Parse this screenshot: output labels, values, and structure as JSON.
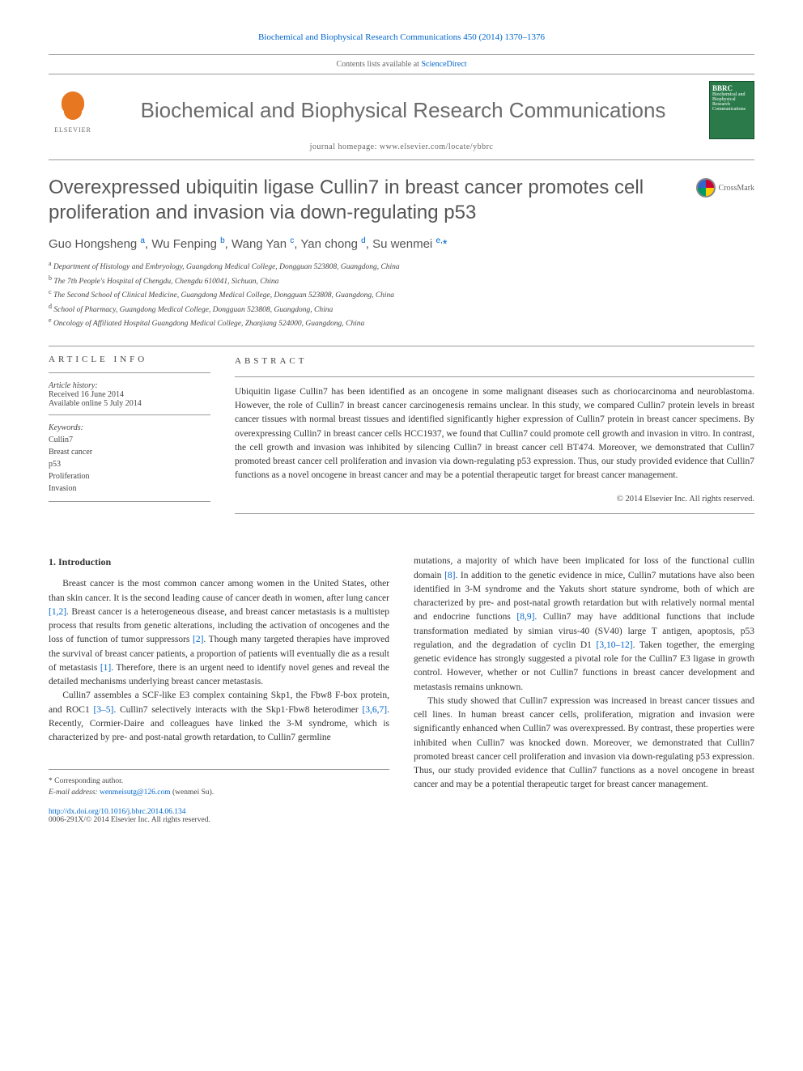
{
  "header": {
    "citation": "Biochemical and Biophysical Research Communications 450 (2014) 1370–1376",
    "contents_line_prefix": "Contents lists available at ",
    "contents_link": "ScienceDirect",
    "journal_title": "Biochemical and Biophysical Research Communications",
    "homepage_prefix": "journal homepage: ",
    "homepage_url": "www.elsevier.com/locate/ybbrc",
    "elsevier_label": "ELSEVIER",
    "cover_bbrc": "BBRC",
    "cover_sub": "Biochemical and Biophysical Research Communications"
  },
  "crossmark": "CrossMark",
  "title": "Overexpressed ubiquitin ligase Cullin7 in breast cancer promotes cell proliferation and invasion via down-regulating p53",
  "authors": [
    {
      "name": "Guo Hongsheng",
      "aff": "a"
    },
    {
      "name": "Wu Fenping",
      "aff": "b"
    },
    {
      "name": "Wang Yan",
      "aff": "c"
    },
    {
      "name": "Yan chong",
      "aff": "d"
    },
    {
      "name": "Su wenmei",
      "aff": "e,",
      "corr": true
    }
  ],
  "affiliations": [
    {
      "sup": "a",
      "text": "Department of Histology and Embryology, Guangdong Medical College, Dongguan 523808, Guangdong, China"
    },
    {
      "sup": "b",
      "text": "The 7th People's Hospital of Chengdu, Chengdu 610041, Sichuan, China"
    },
    {
      "sup": "c",
      "text": "The Second School of Clinical Medicine, Guangdong Medical College, Dongguan 523808, Guangdong, China"
    },
    {
      "sup": "d",
      "text": "School of Pharmacy, Guangdong Medical College, Dongguan 523808, Guangdong, China"
    },
    {
      "sup": "e",
      "text": "Oncology of Affiliated Hospital Guangdong Medical College, Zhanjiang 524000, Guangdong, China"
    }
  ],
  "info": {
    "header": "ARTICLE INFO",
    "history_label": "Article history:",
    "received": "Received 16 June 2014",
    "online": "Available online 5 July 2014",
    "keywords_label": "Keywords:",
    "keywords": [
      "Cullin7",
      "Breast cancer",
      "p53",
      "Proliferation",
      "Invasion"
    ]
  },
  "abstract": {
    "header": "ABSTRACT",
    "text": "Ubiquitin ligase Cullin7 has been identified as an oncogene in some malignant diseases such as choriocarcinoma and neuroblastoma. However, the role of Cullin7 in breast cancer carcinogenesis remains unclear. In this study, we compared Cullin7 protein levels in breast cancer tissues with normal breast tissues and identified significantly higher expression of Cullin7 protein in breast cancer specimens. By overexpressing Cullin7 in breast cancer cells HCC1937, we found that Cullin7 could promote cell growth and invasion in vitro. In contrast, the cell growth and invasion was inhibited by silencing Cullin7 in breast cancer cell BT474. Moreover, we demonstrated that Cullin7 promoted breast cancer cell proliferation and invasion via down-regulating p53 expression. Thus, our study provided evidence that Cullin7 functions as a novel oncogene in breast cancer and may be a potential therapeutic target for breast cancer management.",
    "copyright": "© 2014 Elsevier Inc. All rights reserved."
  },
  "body": {
    "heading": "1. Introduction",
    "col1_p1": "Breast cancer is the most common cancer among women in the United States, other than skin cancer. It is the second leading cause of cancer death in women, after lung cancer [1,2]. Breast cancer is a heterogeneous disease, and breast cancer metastasis is a multistep process that results from genetic alterations, including the activation of oncogenes and the loss of function of tumor suppressors [2]. Though many targeted therapies have improved the survival of breast cancer patients, a proportion of patients will eventually die as a result of metastasis [1]. Therefore, there is an urgent need to identify novel genes and reveal the detailed mechanisms underlying breast cancer metastasis.",
    "col1_p2": "Cullin7 assembles a SCF-like E3 complex containing Skp1, the Fbw8 F-box protein, and ROC1 [3–5]. Cullin7 selectively interacts with the Skp1·Fbw8 heterodimer [3,6,7]. Recently, Cormier-Daire and colleagues have linked the 3-M syndrome, which is characterized by pre- and post-natal growth retardation, to Cullin7 germline",
    "col2_p1": "mutations, a majority of which have been implicated for loss of the functional cullin domain [8]. In addition to the genetic evidence in mice, Cullin7 mutations have also been identified in 3-M syndrome and the Yakuts short stature syndrome, both of which are characterized by pre- and post-natal growth retardation but with relatively normal mental and endocrine functions [8,9]. Cullin7 may have additional functions that include transformation mediated by simian virus-40 (SV40) large T antigen, apoptosis, p53 regulation, and the degradation of cyclin D1 [3,10–12]. Taken together, the emerging genetic evidence has strongly suggested a pivotal role for the Cullin7 E3 ligase in growth control. However, whether or not Cullin7 functions in breast cancer development and metastasis remains unknown.",
    "col2_p2": "This study showed that Cullin7 expression was increased in breast cancer tissues and cell lines. In human breast cancer cells, proliferation, migration and invasion were significantly enhanced when Cullin7 was overexpressed. By contrast, these properties were inhibited when Cullin7 was knocked down. Moreover, we demonstrated that Cullin7 promoted breast cancer cell proliferation and invasion via down-regulating p53 expression. Thus, our study provided evidence that Cullin7 functions as a novel oncogene in breast cancer and may be a potential therapeutic target for breast cancer management."
  },
  "footer": {
    "corr_label": "* Corresponding author.",
    "email_label": "E-mail address: ",
    "email": "wenmeisutg@126.com",
    "email_name": " (wenmei Su).",
    "doi_url": "http://dx.doi.org/10.1016/j.bbrc.2014.06.134",
    "issn_line": "0006-291X/© 2014 Elsevier Inc. All rights reserved."
  },
  "refs": {
    "r12": "[1,2]",
    "r2": "[2]",
    "r1": "[1]",
    "r35": "[3–5]",
    "r367": "[3,6,7]",
    "r8": "[8]",
    "r89": "[8,9]",
    "r31012": "[3,10–12]"
  },
  "colors": {
    "link": "#0066cc",
    "text": "#333333",
    "heading_gray": "#555555",
    "elsevier_orange": "#e87722",
    "cover_green": "#2a7a4a"
  }
}
